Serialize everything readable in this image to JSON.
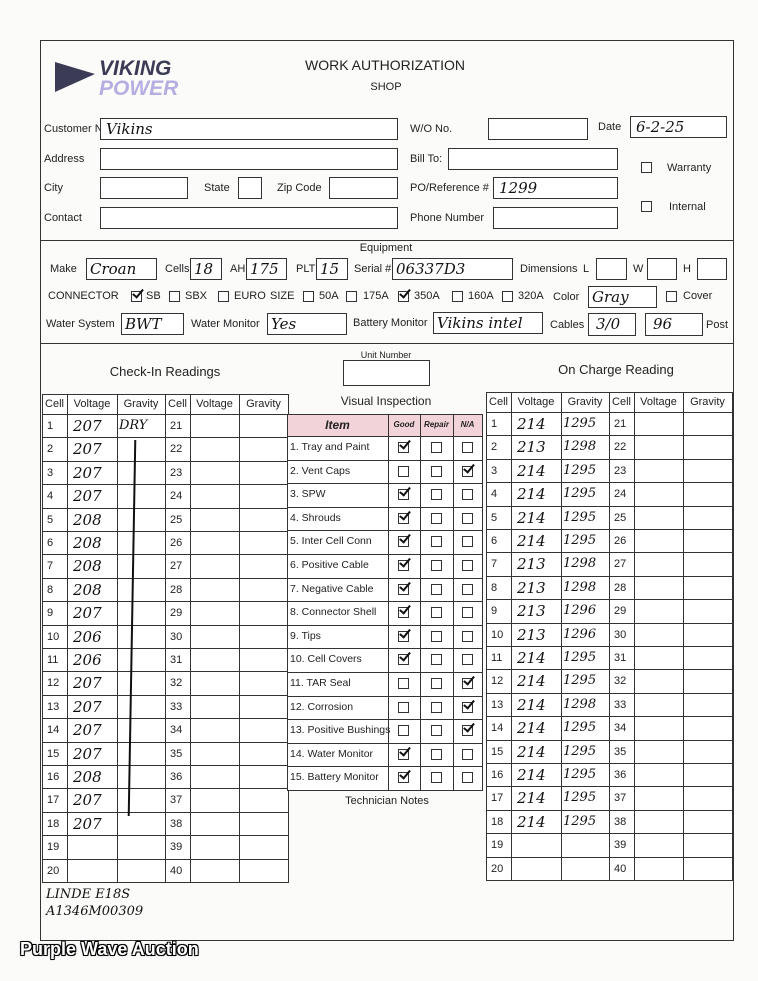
{
  "header": {
    "logo": [
      "VIKING",
      "POWER"
    ],
    "title": "WORK AUTHORIZATION",
    "subtitle": "SHOP"
  },
  "customer": {
    "fields": [
      {
        "label": "Customer Name",
        "value": "Vikins"
      },
      {
        "label": "W/O No."
      },
      {
        "label": "Date",
        "value": "6-2-25"
      },
      {
        "label": "Address"
      },
      {
        "label": "Bill To:"
      },
      {
        "label": "City"
      },
      {
        "label": "State"
      },
      {
        "label": "Zip Code"
      },
      {
        "label": "PO/Reference #",
        "value": "1299"
      },
      {
        "label": "Contact"
      },
      {
        "label": "Phone Number"
      }
    ],
    "checkboxes": [
      {
        "label": "Warranty",
        "checked": false
      },
      {
        "label": "Internal",
        "checked": false
      }
    ]
  },
  "equipment": {
    "title": "Equipment",
    "dimensions_label": "Dimensions",
    "fields": [
      {
        "label": "Make",
        "value": "Croan"
      },
      {
        "label": "Cells",
        "value": "18"
      },
      {
        "label": "AH",
        "value": "175"
      },
      {
        "label": "PLT",
        "value": "15"
      },
      {
        "label": "Serial #",
        "value": "06337D3"
      },
      {
        "label": "L"
      },
      {
        "label": "W"
      },
      {
        "label": "H"
      },
      {
        "label": "Color",
        "value": "Gray"
      },
      {
        "label": "Water System",
        "value": "BWT"
      },
      {
        "label": "Water Monitor",
        "value": "Yes"
      },
      {
        "label": "Battery Monitor",
        "value": "Vikins intel"
      }
    ],
    "connector": {
      "label": "CONNECTOR",
      "size_label": "SIZE",
      "options": [
        {
          "label": "SB",
          "checked": true
        },
        {
          "label": "SBX",
          "checked": false
        },
        {
          "label": "EURO",
          "checked": false
        },
        {
          "label": "50A",
          "checked": false
        },
        {
          "label": "175A",
          "checked": false
        },
        {
          "label": "350A",
          "checked": true
        },
        {
          "label": "160A",
          "checked": false
        },
        {
          "label": "320A",
          "checked": false
        },
        {
          "label": "Cover",
          "checked": false
        }
      ]
    },
    "cables": {
      "label": "Cables",
      "values": [
        "3/0",
        "96"
      ],
      "suffix": "Post"
    }
  },
  "unit_number": {
    "label": "Unit Number"
  },
  "checkin": {
    "title": "Check-In Readings",
    "headers": [
      "Cell",
      "Voltage",
      "Gravity",
      "Cell",
      "Voltage",
      "Gravity"
    ],
    "rows": [
      {
        "cell": 1,
        "voltage": 207,
        "gravity": "DRY"
      },
      {
        "cell": 2,
        "voltage": 207
      },
      {
        "cell": 3,
        "voltage": 207
      },
      {
        "cell": 4,
        "voltage": 207
      },
      {
        "cell": 5,
        "voltage": 208
      },
      {
        "cell": 6,
        "voltage": 208
      },
      {
        "cell": 7,
        "voltage": 208
      },
      {
        "cell": 8,
        "voltage": 208
      },
      {
        "cell": 9,
        "voltage": 207
      },
      {
        "cell": 10,
        "voltage": 206
      },
      {
        "cell": 11,
        "voltage": 206
      },
      {
        "cell": 12,
        "voltage": 207
      },
      {
        "cell": 13,
        "voltage": 207
      },
      {
        "cell": 14,
        "voltage": 207
      },
      {
        "cell": 15,
        "voltage": 207
      },
      {
        "cell": 16,
        "voltage": 208
      },
      {
        "cell": 17,
        "voltage": 207
      },
      {
        "cell": 18,
        "voltage": 207
      },
      {
        "cell": 19
      },
      {
        "cell": 20
      },
      {
        "cell": 21
      },
      {
        "cell": 22
      },
      {
        "cell": 23
      },
      {
        "cell": 24
      },
      {
        "cell": 25
      },
      {
        "cell": 26
      },
      {
        "cell": 27
      },
      {
        "cell": 28
      },
      {
        "cell": 29
      },
      {
        "cell": 30
      },
      {
        "cell": 31
      },
      {
        "cell": 32
      },
      {
        "cell": 33
      },
      {
        "cell": 34
      },
      {
        "cell": 35
      },
      {
        "cell": 36
      },
      {
        "cell": 37
      },
      {
        "cell": 38
      },
      {
        "cell": 39
      },
      {
        "cell": 40
      }
    ]
  },
  "inspection": {
    "title": "Visual Inspection",
    "headers": [
      "Item",
      "Good",
      "Repair",
      "N/A"
    ],
    "items": [
      {
        "label": "1. Tray and Paint",
        "checked": "good"
      },
      {
        "label": "2. Vent Caps",
        "checked": "na"
      },
      {
        "label": "3. SPW",
        "checked": "good"
      },
      {
        "label": "4. Shrouds",
        "checked": "good"
      },
      {
        "label": "5. Inter Cell Conn",
        "checked": "good"
      },
      {
        "label": "6. Positive Cable",
        "checked": "good"
      },
      {
        "label": "7. Negative Cable",
        "checked": "good"
      },
      {
        "label": "8. Connector Shell",
        "checked": "good"
      },
      {
        "label": "9. Tips",
        "checked": "good"
      },
      {
        "label": "10. Cell Covers",
        "checked": "good"
      },
      {
        "label": "11. TAR Seal",
        "checked": "na"
      },
      {
        "label": "12. Corrosion",
        "checked": "na"
      },
      {
        "label": "13. Positive Bushings",
        "checked": "na"
      },
      {
        "label": "14. Water Monitor",
        "checked": "good"
      },
      {
        "label": "15. Battery Monitor",
        "checked": "good"
      }
    ],
    "notes_label": "Technician Notes"
  },
  "oncharge": {
    "title": "On Charge Reading",
    "headers": [
      "Cell",
      "Voltage",
      "Gravity",
      "Cell",
      "Voltage",
      "Gravity"
    ],
    "rows": [
      {
        "cell": 1,
        "voltage": 214,
        "gravity": 1295
      },
      {
        "cell": 2,
        "voltage": 213,
        "gravity": 1298
      },
      {
        "cell": 3,
        "voltage": 214,
        "gravity": 1295
      },
      {
        "cell": 4,
        "voltage": 214,
        "gravity": 1295
      },
      {
        "cell": 5,
        "voltage": 214,
        "gravity": 1295
      },
      {
        "cell": 6,
        "voltage": 214,
        "gravity": 1295
      },
      {
        "cell": 7,
        "voltage": 213,
        "gravity": 1298
      },
      {
        "cell": 8,
        "voltage": 213,
        "gravity": 1298
      },
      {
        "cell": 9,
        "voltage": 213,
        "gravity": 1296
      },
      {
        "cell": 10,
        "voltage": 213,
        "gravity": 1296
      },
      {
        "cell": 11,
        "voltage": 214,
        "gravity": 1295
      },
      {
        "cell": 12,
        "voltage": 214,
        "gravity": 1295
      },
      {
        "cell": 13,
        "voltage": 214,
        "gravity": 1298
      },
      {
        "cell": 14,
        "voltage": 214,
        "gravity": 1295
      },
      {
        "cell": 15,
        "voltage": 214,
        "gravity": 1295
      },
      {
        "cell": 16,
        "voltage": 214,
        "gravity": 1295
      },
      {
        "cell": 17,
        "voltage": 214,
        "gravity": 1295
      },
      {
        "cell": 18,
        "voltage": 214,
        "gravity": 1295
      },
      {
        "cell": 19
      },
      {
        "cell": 20
      },
      {
        "cell": 21
      },
      {
        "cell": 22
      },
      {
        "cell": 23
      },
      {
        "cell": 24
      },
      {
        "cell": 25
      },
      {
        "cell": 26
      },
      {
        "cell": 27
      },
      {
        "cell": 28
      },
      {
        "cell": 29
      },
      {
        "cell": 30
      },
      {
        "cell": 31
      },
      {
        "cell": 32
      },
      {
        "cell": 33
      },
      {
        "cell": 34
      },
      {
        "cell": 35
      },
      {
        "cell": 36
      },
      {
        "cell": 37
      },
      {
        "cell": 38
      },
      {
        "cell": 39
      },
      {
        "cell": 40
      }
    ]
  },
  "footer": {
    "notes": [
      "LINDE E18S",
      "A1346M00309"
    ],
    "watermark": "Purple Wave Auction"
  }
}
